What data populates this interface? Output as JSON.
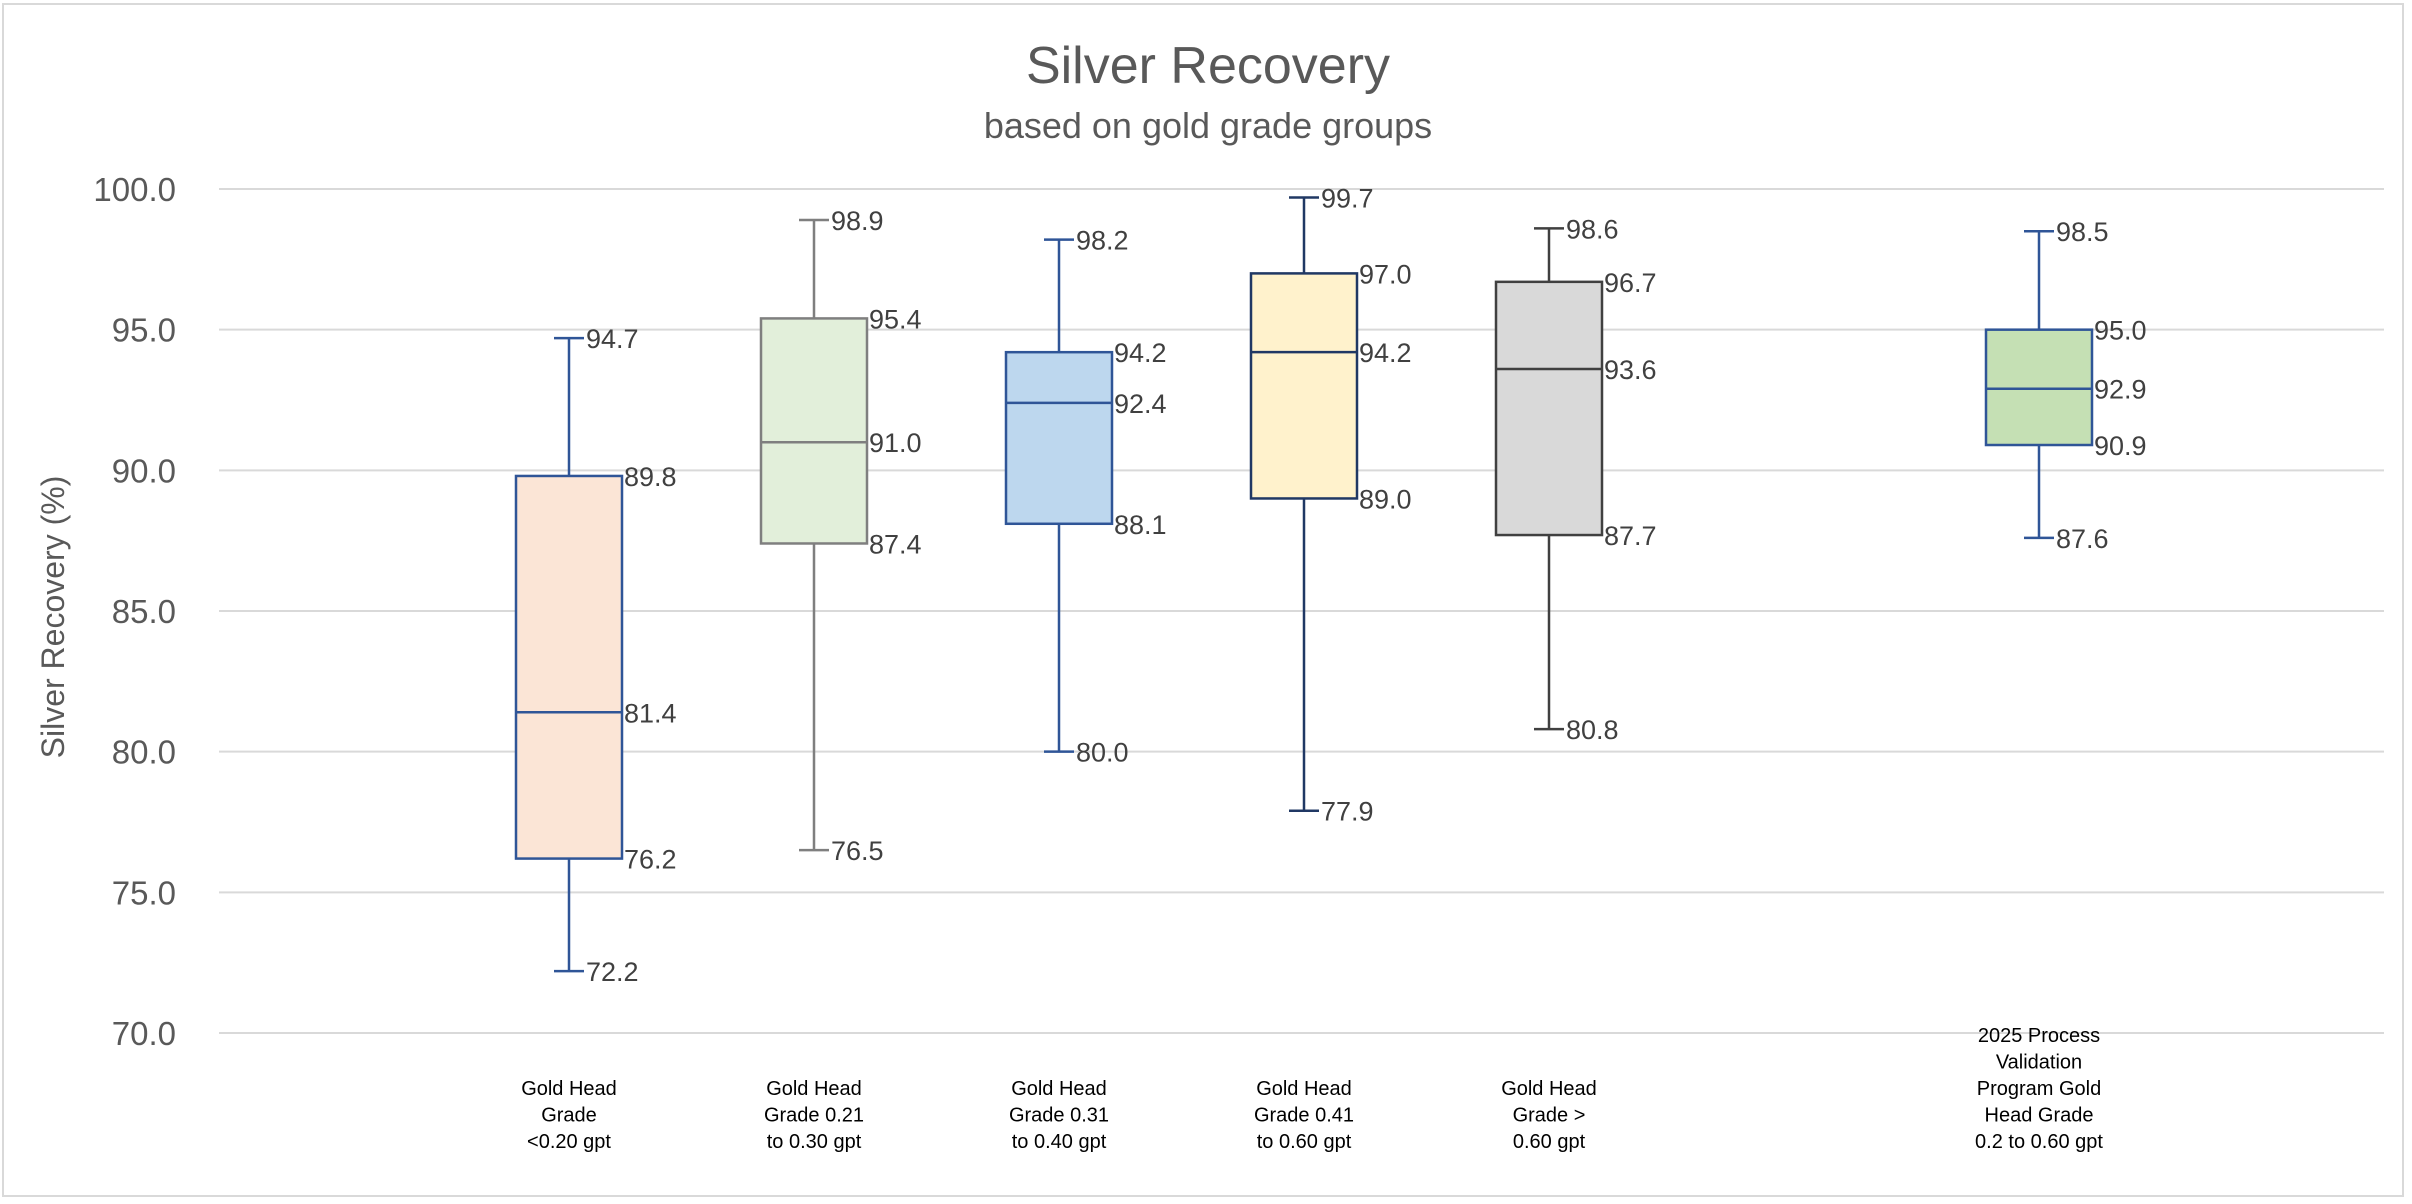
{
  "chart_data": {
    "type": "boxplot",
    "title": "Silver Recovery",
    "subtitle": "based on gold grade groups",
    "ylabel": "Silver Recovery (%)",
    "xlabel": "",
    "ylim": [
      70,
      100
    ],
    "yticks": [
      "70.0",
      "75.0",
      "80.0",
      "85.0",
      "90.0",
      "95.0",
      "100.0"
    ],
    "grid": true,
    "series": [
      {
        "name": "Gold Head Grade <0.20 gpt",
        "label_lines": [
          "Gold Head",
          "Grade",
          "<0.20 gpt"
        ],
        "min": 72.2,
        "q1": 76.2,
        "median": 81.4,
        "q3": 89.8,
        "max": 94.7,
        "fill": "#fbe5d6",
        "stroke": "#2f5597",
        "whisker": "#2f5597",
        "slot": 0
      },
      {
        "name": "Gold Head Grade 0.21 to 0.30 gpt",
        "label_lines": [
          "Gold Head",
          "Grade 0.21",
          "to 0.30 gpt"
        ],
        "min": 76.5,
        "q1": 87.4,
        "median": 91.0,
        "q3": 95.4,
        "max": 98.9,
        "fill": "#e2efda",
        "stroke": "#7f7f7f",
        "whisker": "#7f7f7f",
        "slot": 1
      },
      {
        "name": "Gold Head Grade 0.31 to 0.40 gpt",
        "label_lines": [
          "Gold Head",
          "Grade 0.31",
          "to 0.40 gpt"
        ],
        "min": 80.0,
        "q1": 88.1,
        "median": 92.4,
        "q3": 94.2,
        "max": 98.2,
        "fill": "#bdd7ee",
        "stroke": "#2f5597",
        "whisker": "#2f5597",
        "slot": 2
      },
      {
        "name": "Gold Head Grade 0.41 to 0.60 gpt",
        "label_lines": [
          "Gold Head",
          "Grade 0.41",
          "to 0.60 gpt"
        ],
        "min": 77.9,
        "q1": 89.0,
        "median": 94.2,
        "q3": 97.0,
        "max": 99.7,
        "fill": "#fff2cc",
        "stroke": "#203864",
        "whisker": "#203864",
        "slot": 3
      },
      {
        "name": "Gold Head Grade > 0.60 gpt",
        "label_lines": [
          "Gold Head",
          "Grade >",
          "0.60 gpt"
        ],
        "min": 80.8,
        "q1": 87.7,
        "median": 93.6,
        "q3": 96.7,
        "max": 98.6,
        "fill": "#d9d9d9",
        "stroke": "#404040",
        "whisker": "#404040",
        "slot": 4
      },
      {
        "name": "2025 Process Validation Program Gold Head Grade 0.2 to 0.60 gpt",
        "label_lines": [
          "2025 Process",
          "Validation",
          "Program Gold",
          "Head Grade",
          "0.2 to 0.60 gpt"
        ],
        "min": 87.6,
        "q1": 90.9,
        "median": 92.9,
        "q3": 95.0,
        "max": 98.5,
        "fill": "#c5e0b4",
        "stroke": "#2f5597",
        "whisker": "#2f5597",
        "slot": 6
      }
    ]
  }
}
